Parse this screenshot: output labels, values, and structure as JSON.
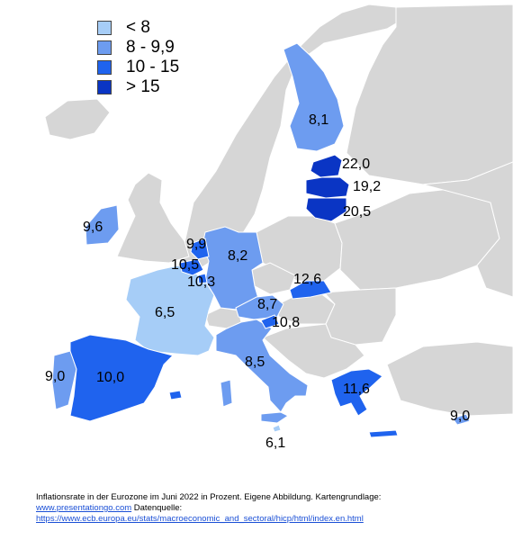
{
  "colors": {
    "background_country": "#d6d6d6",
    "sea": "#ffffff",
    "lt8": "#a6cdf7",
    "8to9_9": "#6d9cf0",
    "10to15": "#1f63ee",
    "gt15": "#0a35c4"
  },
  "legend": [
    {
      "label": "< 8",
      "color": "#a6cdf7"
    },
    {
      "label": "8 - 9,9",
      "color": "#6d9cf0"
    },
    {
      "label": "10 - 15",
      "color": "#1f63ee"
    },
    {
      "label": "> 15",
      "color": "#0a35c4"
    }
  ],
  "countries": [
    {
      "name": "Finland",
      "value": "8,1"
    },
    {
      "name": "Estonia",
      "value": "22,0"
    },
    {
      "name": "Latvia",
      "value": "19,2"
    },
    {
      "name": "Lithuania",
      "value": "20,5"
    },
    {
      "name": "Ireland",
      "value": "9,6"
    },
    {
      "name": "Netherlands",
      "value": "9,9"
    },
    {
      "name": "Belgium",
      "value": "10,5"
    },
    {
      "name": "Luxembourg",
      "value": "10,3"
    },
    {
      "name": "Germany",
      "value": "8,2"
    },
    {
      "name": "Slovakia",
      "value": "12,6"
    },
    {
      "name": "France",
      "value": "6,5"
    },
    {
      "name": "Austria",
      "value": "8,7"
    },
    {
      "name": "Slovenia",
      "value": "10,8"
    },
    {
      "name": "Italy",
      "value": "8,5"
    },
    {
      "name": "Portugal",
      "value": "9,0"
    },
    {
      "name": "Spain",
      "value": "10,0"
    },
    {
      "name": "Greece",
      "value": "11,6"
    },
    {
      "name": "Malta",
      "value": "6,1"
    },
    {
      "name": "Cyprus",
      "value": "9,0"
    }
  ],
  "caption": {
    "line1": "Inflationsrate in der Eurozone im Juni 2022 in Prozent. Eigene Abbildung. Kartengrundlage:",
    "link1": "www.presentationgo.com",
    "line2_suffix": " Datenquelle:",
    "link2": "https://www.ecb.europa.eu/stats/macroeconomic_and_sectoral/hicp/html/index.en.html"
  }
}
